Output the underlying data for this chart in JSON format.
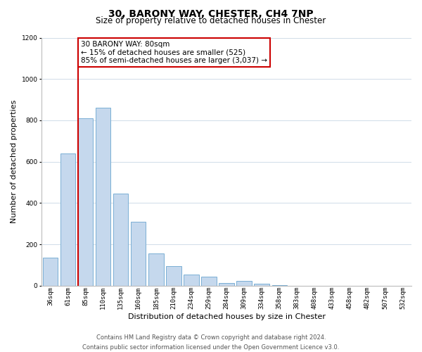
{
  "title": "30, BARONY WAY, CHESTER, CH4 7NP",
  "subtitle": "Size of property relative to detached houses in Chester",
  "xlabel": "Distribution of detached houses by size in Chester",
  "ylabel": "Number of detached properties",
  "bar_color": "#c5d8ed",
  "bar_edge_color": "#7aafd4",
  "categories": [
    "36sqm",
    "61sqm",
    "85sqm",
    "110sqm",
    "135sqm",
    "160sqm",
    "185sqm",
    "210sqm",
    "234sqm",
    "259sqm",
    "284sqm",
    "309sqm",
    "334sqm",
    "358sqm",
    "383sqm",
    "408sqm",
    "433sqm",
    "458sqm",
    "482sqm",
    "507sqm",
    "532sqm"
  ],
  "values": [
    135,
    640,
    810,
    860,
    445,
    310,
    155,
    95,
    55,
    42,
    14,
    22,
    8,
    2,
    0,
    0,
    0,
    0,
    0,
    0,
    0
  ],
  "vline_color": "#cc0000",
  "annotation_line1": "30 BARONY WAY: 80sqm",
  "annotation_line2": "← 15% of detached houses are smaller (525)",
  "annotation_line3": "85% of semi-detached houses are larger (3,037) →",
  "annotation_box_color": "#ffffff",
  "annotation_box_edge_color": "#cc0000",
  "ylim": [
    0,
    1200
  ],
  "yticks": [
    0,
    200,
    400,
    600,
    800,
    1000,
    1200
  ],
  "footer_line1": "Contains HM Land Registry data © Crown copyright and database right 2024.",
  "footer_line2": "Contains public sector information licensed under the Open Government Licence v3.0.",
  "background_color": "#ffffff",
  "grid_color": "#d0dce8",
  "title_fontsize": 10,
  "subtitle_fontsize": 8.5,
  "axis_label_fontsize": 8,
  "tick_fontsize": 6.5,
  "annotation_fontsize": 7.5,
  "footer_fontsize": 6
}
